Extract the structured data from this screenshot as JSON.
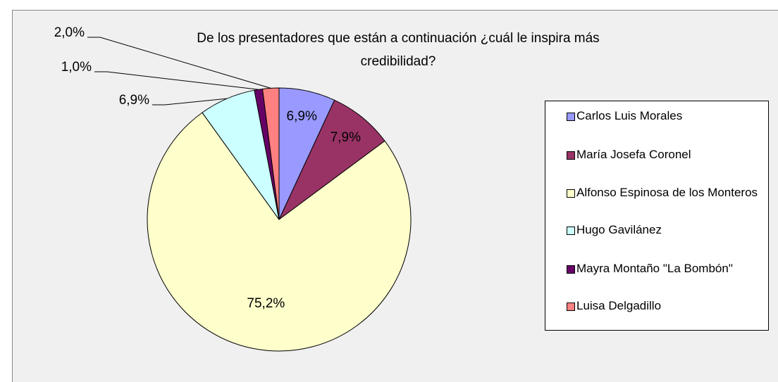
{
  "chart_data": {
    "type": "pie",
    "title": "De los presentadores que están a continuación ¿cuál le inspira más credibilidad?",
    "categories": [
      "Carlos Luis Morales",
      "María Josefa Coronel",
      "Alfonso Espinosa de los Monteros",
      "Hugo Gavilánez",
      "Mayra Montaño \"La Bombón\"",
      "Luisa Delgadillo"
    ],
    "values": [
      6.9,
      7.9,
      75.2,
      6.9,
      1.0,
      2.0
    ],
    "value_labels": [
      "6,9%",
      "7,9%",
      "75,2%",
      "6,9%",
      "1,0%",
      "2,0%"
    ],
    "colors": [
      "#9999ff",
      "#993366",
      "#ffffcc",
      "#ccffff",
      "#660066",
      "#ff8080"
    ],
    "legend": "right"
  }
}
